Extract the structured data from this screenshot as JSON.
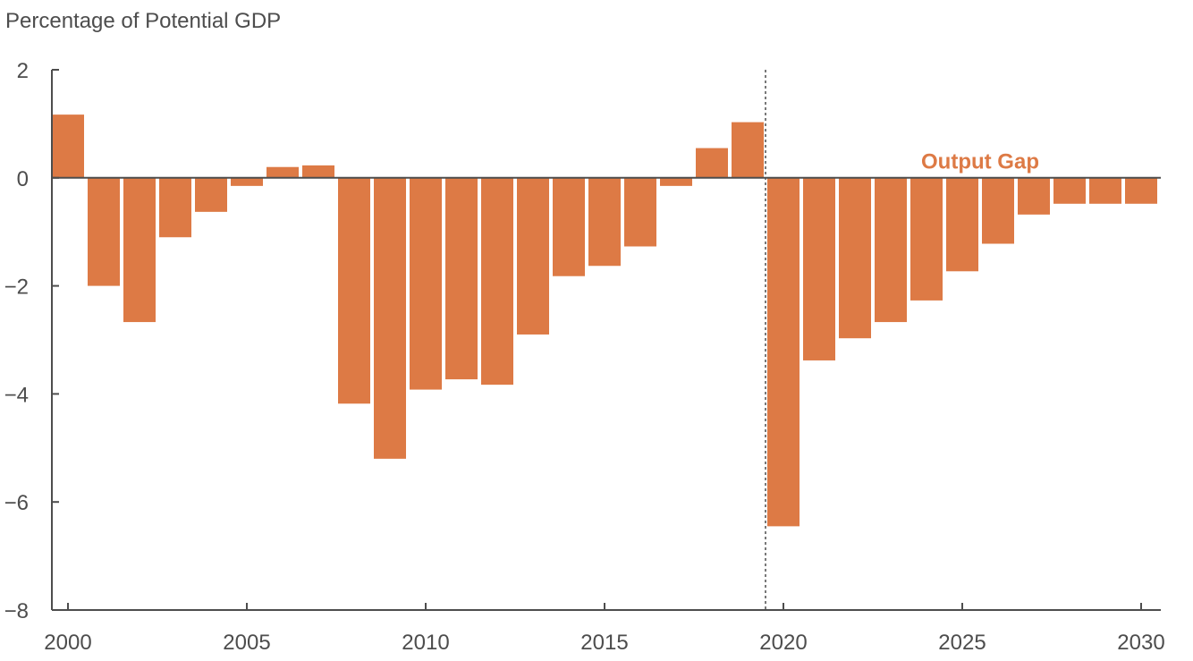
{
  "chart_data": {
    "type": "bar",
    "title": "",
    "ylabel": "Percentage of Potential GDP",
    "xlabel": "",
    "ylim": [
      -8,
      2
    ],
    "xlim": [
      1999.55,
      2030.55
    ],
    "yticks": [
      2,
      0,
      -2,
      -4,
      -6,
      -8
    ],
    "ytick_labels": [
      "2",
      "0",
      "−2",
      "−4",
      "−6",
      "−8"
    ],
    "xticks": [
      2000,
      2005,
      2010,
      2015,
      2020,
      2025,
      2030
    ],
    "xtick_labels": [
      "2000",
      "2005",
      "2010",
      "2015",
      "2020",
      "2025",
      "2030"
    ],
    "grid": false,
    "bar_color": "#dd7a45",
    "projection_start": 2019.5,
    "series": [
      {
        "name": "Output Gap",
        "color": "#dd7a45",
        "x": [
          2000,
          2001,
          2002,
          2003,
          2004,
          2005,
          2006,
          2007,
          2008,
          2009,
          2010,
          2011,
          2012,
          2013,
          2014,
          2015,
          2016,
          2017,
          2018,
          2019,
          2020,
          2021,
          2022,
          2023,
          2024,
          2025,
          2026,
          2027,
          2028,
          2029,
          2030
        ],
        "values": [
          1.17,
          -2.0,
          -2.67,
          -1.1,
          -0.63,
          -0.15,
          0.2,
          0.23,
          -4.18,
          -5.2,
          -3.92,
          -3.73,
          -3.83,
          -2.9,
          -1.82,
          -1.63,
          -1.27,
          -0.15,
          0.55,
          1.03,
          -6.45,
          -3.38,
          -2.97,
          -2.67,
          -2.27,
          -1.73,
          -1.22,
          -0.68,
          -0.48,
          -0.48,
          -0.48
        ]
      }
    ]
  }
}
